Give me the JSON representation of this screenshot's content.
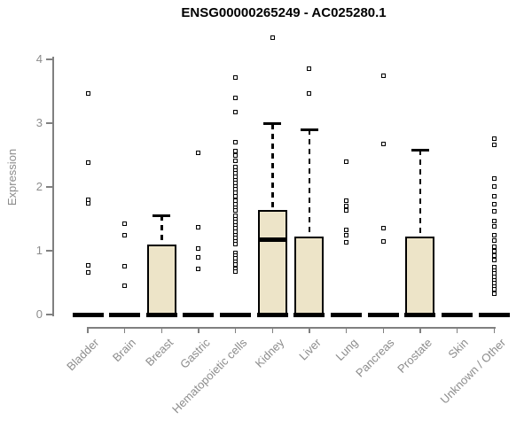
{
  "chart_data": {
    "type": "boxplot",
    "title": "ENSG00000265249 - AC025280.1",
    "ylabel": "Expression",
    "xlabel": "",
    "ylim": [
      0,
      4.4
    ],
    "yticks": [
      0,
      1,
      2,
      3,
      4
    ],
    "grid": false,
    "legend": "none",
    "colors": {
      "box_fill": "#ede4c8",
      "box_border": "#000000",
      "axis": "#808080",
      "tick_text": "#8c8c8c",
      "title_text": "#000000",
      "background": "#ffffff"
    },
    "categories": [
      "Bladder",
      "Brain",
      "Breast",
      "Gastric",
      "Hematopoietic cells",
      "Kidney",
      "Liver",
      "Lung",
      "Pancreas",
      "Prostate",
      "Skin",
      "Unknown / Other"
    ],
    "series": [
      {
        "label": "Bladder",
        "q1": 0,
        "median": 0,
        "q3": 0,
        "whisker_low": 0,
        "whisker_high": 0,
        "outliers": [
          3.46,
          2.38,
          1.8,
          1.74,
          0.77,
          0.66
        ]
      },
      {
        "label": "Brain",
        "q1": 0,
        "median": 0,
        "q3": 0,
        "whisker_low": 0,
        "whisker_high": 0,
        "outliers": [
          1.42,
          1.25,
          0.76,
          0.45
        ]
      },
      {
        "label": "Breast",
        "q1": 0,
        "median": 0,
        "q3": 1.1,
        "whisker_low": 0,
        "whisker_high": 1.55,
        "outliers": []
      },
      {
        "label": "Gastric",
        "q1": 0,
        "median": 0,
        "q3": 0,
        "whisker_low": 0,
        "whisker_high": 0,
        "outliers": [
          2.53,
          1.37,
          1.03,
          0.9,
          0.71
        ]
      },
      {
        "label": "Hematopoietic cells",
        "q1": 0,
        "median": 0,
        "q3": 0,
        "whisker_low": 0,
        "whisker_high": 0,
        "outliers": [
          3.72,
          3.39,
          3.18,
          2.7,
          2.56,
          2.5,
          2.41,
          2.31,
          2.26,
          2.21,
          2.16,
          2.11,
          2.06,
          2.01,
          1.96,
          1.91,
          1.86,
          1.78,
          1.73,
          1.68,
          1.63,
          1.55,
          1.5,
          1.45,
          1.4,
          1.35,
          1.3,
          1.25,
          1.2,
          1.15,
          1.1,
          0.97,
          0.92,
          0.88,
          0.83,
          0.78,
          0.72,
          0.67
        ]
      },
      {
        "label": "Kidney",
        "q1": 0,
        "median": 1.17,
        "q3": 1.64,
        "whisker_low": 0,
        "whisker_high": 2.99,
        "outliers": [
          4.34
        ]
      },
      {
        "label": "Liver",
        "q1": 0,
        "median": 0,
        "q3": 1.22,
        "whisker_low": 0,
        "whisker_high": 2.9,
        "outliers": [
          3.85,
          3.46
        ]
      },
      {
        "label": "Lung",
        "q1": 0,
        "median": 0,
        "q3": 0,
        "whisker_low": 0,
        "whisker_high": 0,
        "outliers": [
          2.4,
          1.78,
          1.7,
          1.63,
          1.32,
          1.24,
          1.13
        ]
      },
      {
        "label": "Pancreas",
        "q1": 0,
        "median": 0,
        "q3": 0,
        "whisker_low": 0,
        "whisker_high": 0,
        "outliers": [
          3.75,
          2.68,
          1.36,
          1.15
        ]
      },
      {
        "label": "Prostate",
        "q1": 0,
        "median": 0,
        "q3": 1.22,
        "whisker_low": 0,
        "whisker_high": 2.58,
        "outliers": []
      },
      {
        "label": "Skin",
        "q1": 0,
        "median": 0,
        "q3": 0,
        "whisker_low": 0,
        "whisker_high": 0,
        "outliers": []
      },
      {
        "label": "Unknown / Other",
        "q1": 0,
        "median": 0,
        "q3": 0,
        "whisker_low": 0,
        "whisker_high": 0,
        "outliers": [
          2.76,
          2.66,
          2.13,
          2.01,
          1.85,
          1.73,
          1.62,
          1.46,
          1.38,
          1.25,
          1.16,
          1.06,
          1.0,
          0.93,
          0.86,
          0.74,
          0.69,
          0.64,
          0.59,
          0.54,
          0.49,
          0.44,
          0.39,
          0.33
        ]
      }
    ]
  }
}
